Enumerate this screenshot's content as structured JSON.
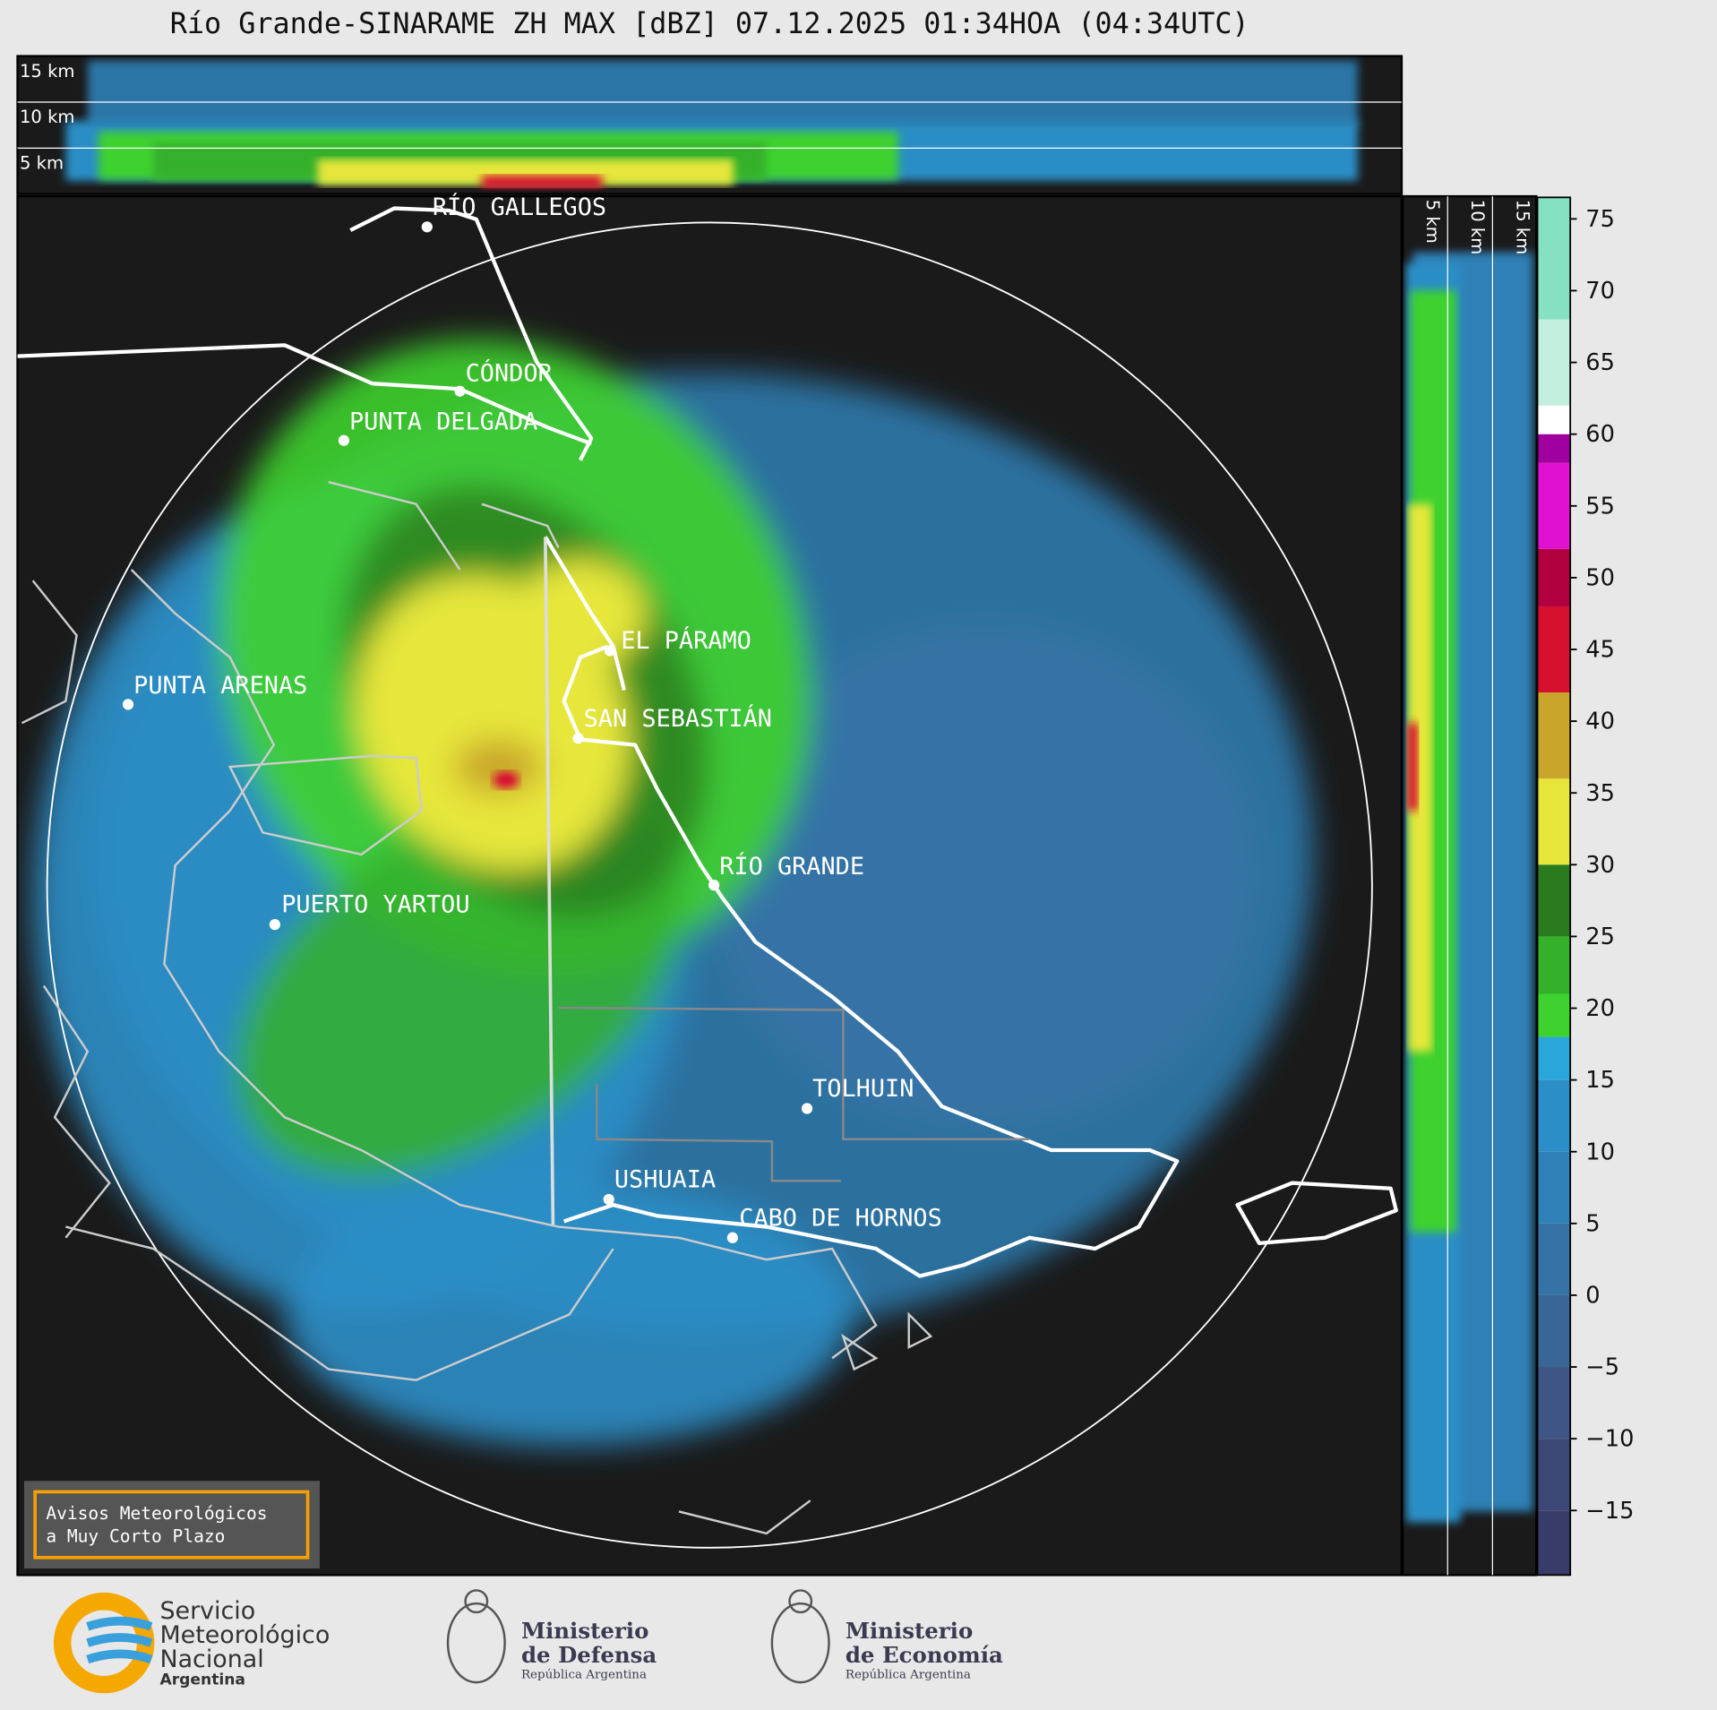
{
  "header": {
    "title": "Río Grande-SINARAME ZH MAX [dBZ] 07.12.2025 01:34HOA (04:34UTC)"
  },
  "top_panel": {
    "altitude_labels": [
      "15 km",
      "10 km",
      "5 km"
    ]
  },
  "side_panel": {
    "altitude_labels": [
      "5 km",
      "10 km",
      "15 km"
    ]
  },
  "map": {
    "cities": [
      "RÍO GALLEGOS",
      "CÓNDOR",
      "PUNTA DELGADA",
      "PUNTA ARENAS",
      "EL PÁRAMO",
      "SAN SEBASTIÁN",
      "RÍO GRANDE",
      "PUERTO YARTOU",
      "TOLHUIN",
      "USHUAIA",
      "CABO DE HORNOS"
    ],
    "notice": [
      "Avisos Meteorológicos",
      "a Muy Corto Plazo"
    ]
  },
  "colorbar": {
    "lim": [
      -19.5,
      76.5
    ],
    "ticks": [
      75,
      70,
      65,
      60,
      55,
      50,
      45,
      40,
      35,
      30,
      25,
      20,
      15,
      10,
      5,
      0,
      {
        "value": -5,
        "label": "−5"
      },
      {
        "value": -10,
        "label": "−10"
      },
      {
        "value": -15,
        "label": "−15"
      }
    ],
    "stops": [
      {
        "value": -19.5,
        "color": "#383c6a"
      },
      {
        "value": -15,
        "color": "#3d4876"
      },
      {
        "value": -10,
        "color": "#3e5585"
      },
      {
        "value": -5,
        "color": "#3a6696"
      },
      {
        "value": 0,
        "color": "#3573a6"
      },
      {
        "value": 5,
        "color": "#2f80b6"
      },
      {
        "value": 10,
        "color": "#2b8ec6"
      },
      {
        "value": 15,
        "color": "#2aa6da"
      },
      {
        "value": 18,
        "color": "#3ed22e"
      },
      {
        "value": 21,
        "color": "#35b02a"
      },
      {
        "value": 25,
        "color": "#2a7a1e"
      },
      {
        "value": 30,
        "color": "#e6e63a"
      },
      {
        "value": 36,
        "color": "#c9a52c"
      },
      {
        "value": 42,
        "color": "#d81030"
      },
      {
        "value": 48,
        "color": "#b00040"
      },
      {
        "value": 52,
        "color": "#e010d0"
      },
      {
        "value": 58,
        "color": "#a000a0"
      },
      {
        "value": 60,
        "color": "#ffffff"
      },
      {
        "value": 62,
        "color": "#c4eedd"
      },
      {
        "value": 68,
        "color": "#86e0c2"
      }
    ]
  },
  "footer": {
    "smn": [
      "Servicio",
      "Meteorológico",
      "Nacional",
      "Argentina"
    ],
    "defensa": [
      "Ministerio",
      "de Defensa",
      "República Argentina"
    ],
    "economia": [
      "Ministerio",
      "de Economía",
      "República Argentina"
    ]
  }
}
